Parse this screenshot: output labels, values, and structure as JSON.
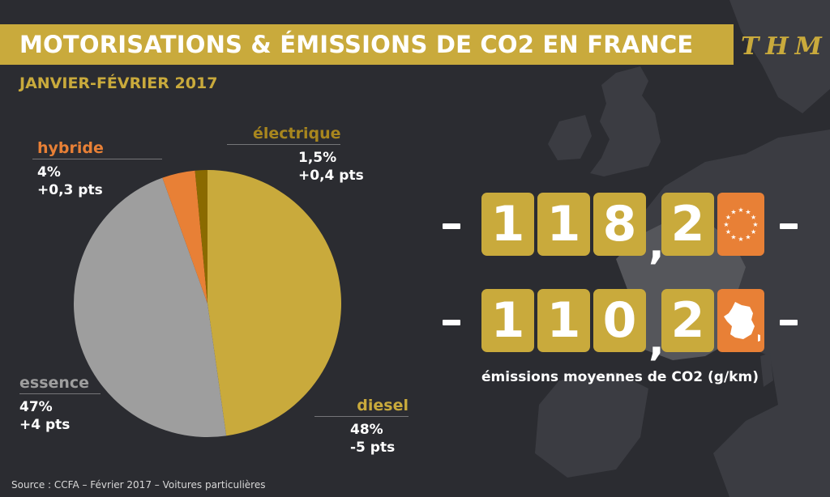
{
  "header": {
    "title": "MOTORISATIONS & ÉMISSIONS DE CO2 EN FRANCE",
    "brand": "THM",
    "subtitle": "JANVIER-FÉVRIER 2017"
  },
  "colors": {
    "gold": "#c9aa3c",
    "grey": "#9e9e9e",
    "orange": "#e88036",
    "brown": "#8a6a00",
    "background": "#2b2c31",
    "map": "#3b3c42",
    "france": "#55565b"
  },
  "chart_data": {
    "type": "pie",
    "start_angle_deg": 0,
    "slices": [
      {
        "name": "diesel",
        "value": 48,
        "value_label": "48%",
        "change_label": "-5 pts",
        "color": "#c9aa3c",
        "label_color": "#c9aa3c"
      },
      {
        "name": "essence",
        "value": 47,
        "value_label": "47%",
        "change_label": "+4 pts",
        "color": "#9e9e9e",
        "label_color": "#9e9e9e"
      },
      {
        "name": "hybride",
        "value": 4,
        "value_label": "4%",
        "change_label": "+0,3 pts",
        "color": "#e88036",
        "label_color": "#e88036"
      },
      {
        "name": "électrique",
        "value": 1.5,
        "value_label": "1,5%",
        "change_label": "+0,4 pts",
        "color": "#8a6a00",
        "label_color": "#a8861e"
      }
    ]
  },
  "emissions": {
    "europe": {
      "digits": [
        "1",
        "1",
        "8",
        "2"
      ],
      "badge_icon": "eu-flag-icon"
    },
    "france": {
      "digits": [
        "1",
        "1",
        "0",
        "2"
      ],
      "badge_icon": "france-map-icon"
    },
    "caption": "émissions moyennes de CO2 (g/km)"
  },
  "footer": {
    "source": "Source : CCFA – Février 2017 – Voitures particulières"
  }
}
